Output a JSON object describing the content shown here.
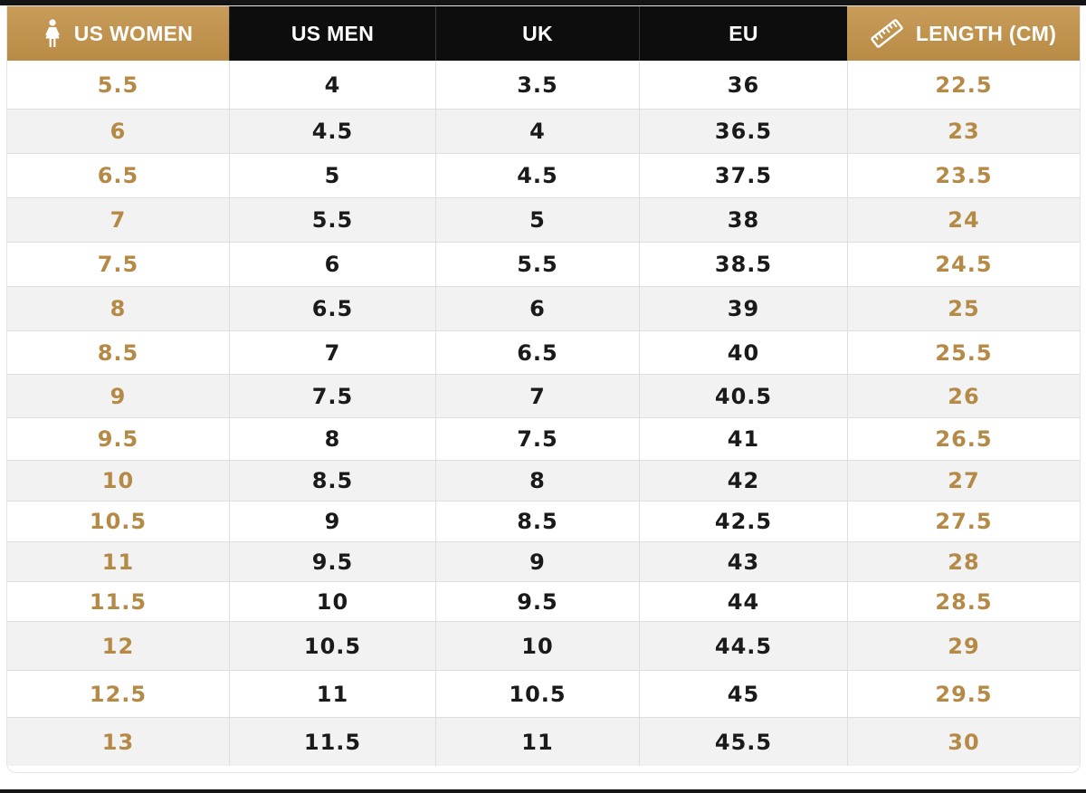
{
  "colors": {
    "gold": "#b58a47",
    "header_black": "#0d0d0d",
    "alt_row": "#f2f2f2"
  },
  "header": {
    "columns": [
      {
        "label": "US WOMEN",
        "icon": "woman-icon"
      },
      {
        "label": "US MEN"
      },
      {
        "label": "UK"
      },
      {
        "label": "EU"
      },
      {
        "label": "LENGTH (CM)",
        "icon": "ruler-icon"
      }
    ]
  },
  "rows": [
    [
      "5.5",
      "4",
      "3.5",
      "36",
      "22.5"
    ],
    [
      "6",
      "4.5",
      "4",
      "36.5",
      "23"
    ],
    [
      "6.5",
      "5",
      "4.5",
      "37.5",
      "23.5"
    ],
    [
      "7",
      "5.5",
      "5",
      "38",
      "24"
    ],
    [
      "7.5",
      "6",
      "5.5",
      "38.5",
      "24.5"
    ],
    [
      "8",
      "6.5",
      "6",
      "39",
      "25"
    ],
    [
      "8.5",
      "7",
      "6.5",
      "40",
      "25.5"
    ],
    [
      "9",
      "7.5",
      "7",
      "40.5",
      "26"
    ],
    [
      "9.5",
      "8",
      "7.5",
      "41",
      "26.5"
    ],
    [
      "10",
      "8.5",
      "8",
      "42",
      "27"
    ],
    [
      "10.5",
      "9",
      "8.5",
      "42.5",
      "27.5"
    ],
    [
      "11",
      "9.5",
      "9",
      "43",
      "28"
    ],
    [
      "11.5",
      "10",
      "9.5",
      "44",
      "28.5"
    ],
    [
      "12",
      "10.5",
      "10",
      "44.5",
      "29"
    ],
    [
      "12.5",
      "11",
      "10.5",
      "45",
      "29.5"
    ],
    [
      "13",
      "11.5",
      "11",
      "45.5",
      "30"
    ]
  ]
}
